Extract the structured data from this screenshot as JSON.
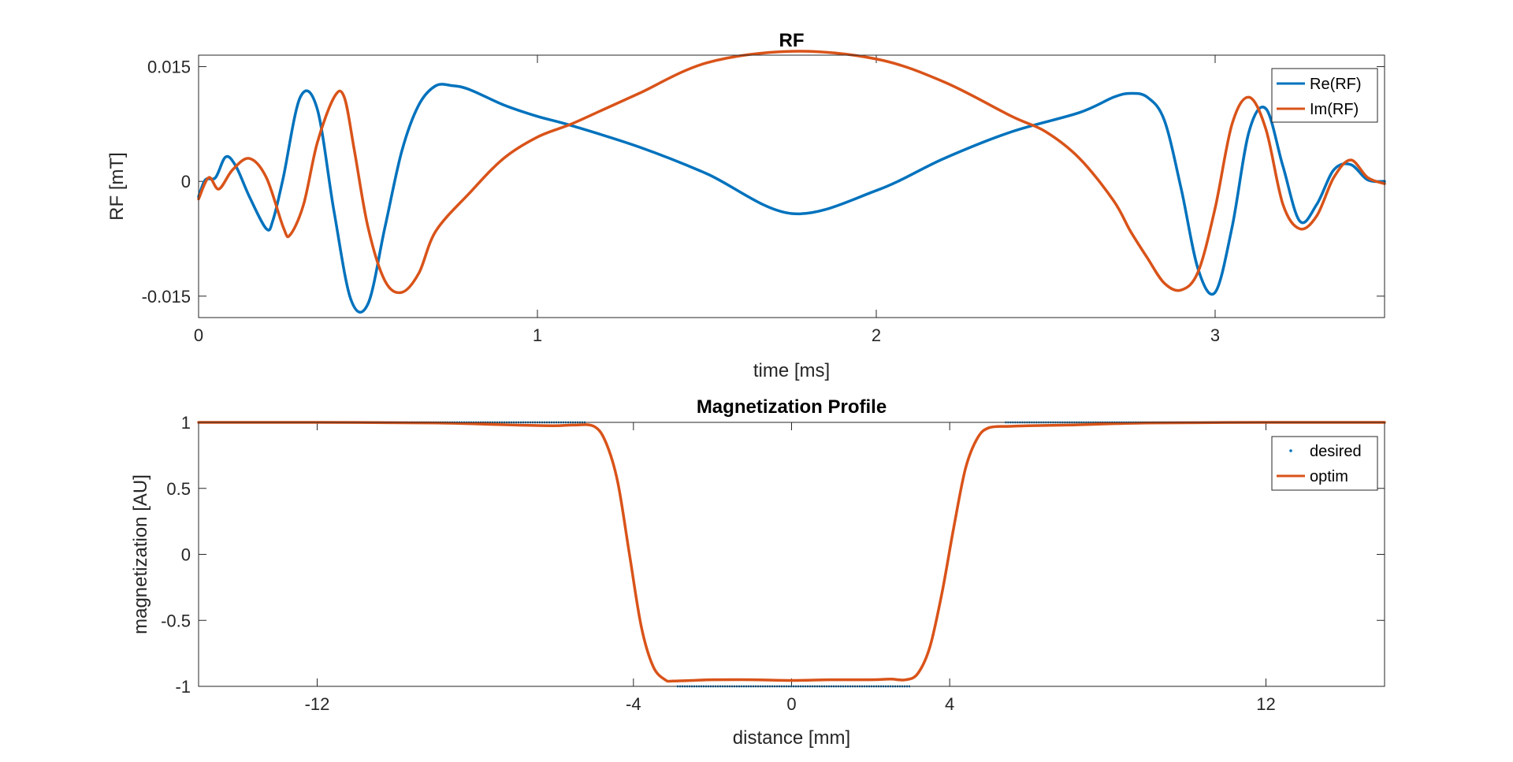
{
  "chart_data": [
    {
      "type": "line",
      "title": "RF",
      "xlabel": "time [ms]",
      "ylabel": "RF [mT]",
      "xlim": [
        0,
        3.5
      ],
      "ylim": [
        -0.0178,
        0.0165
      ],
      "xticks": [
        0,
        1,
        2,
        3
      ],
      "xtick_labels": [
        "0",
        "1",
        "2",
        "3"
      ],
      "yticks": [
        -0.015,
        0,
        0.015
      ],
      "ytick_labels": [
        "-0.015",
        "0",
        "0.015"
      ],
      "legend_position": "top-right",
      "series": [
        {
          "name": "Re(RF)",
          "color": "#0072BD",
          "x": [
            0,
            0.02,
            0.05,
            0.08,
            0.11,
            0.15,
            0.2,
            0.22,
            0.25,
            0.3,
            0.35,
            0.4,
            0.45,
            0.5,
            0.55,
            0.6,
            0.65,
            0.7,
            0.75,
            0.8,
            0.9,
            1.0,
            1.1,
            1.3,
            1.5,
            1.75,
            2.0,
            2.2,
            2.4,
            2.6,
            2.7,
            2.75,
            2.8,
            2.85,
            2.9,
            2.95,
            3.0,
            3.05,
            3.1,
            3.15,
            3.2,
            3.25,
            3.3,
            3.35,
            3.4,
            3.45,
            3.5
          ],
          "y": [
            -0.002,
            0.0002,
            0.0005,
            0.0032,
            0.002,
            -0.002,
            -0.0062,
            -0.005,
            0.0005,
            0.011,
            0.0095,
            -0.004,
            -0.0155,
            -0.016,
            -0.006,
            0.004,
            0.01,
            0.0125,
            0.0125,
            0.012,
            0.01,
            0.0085,
            0.0073,
            0.0045,
            0.001,
            -0.0042,
            -0.0012,
            0.003,
            0.0065,
            0.009,
            0.011,
            0.0115,
            0.011,
            0.008,
            -0.001,
            -0.0115,
            -0.0145,
            -0.006,
            0.0065,
            0.0095,
            0.002,
            -0.0052,
            -0.003,
            0.0015,
            0.0022,
            0.0002,
            0
          ]
        },
        {
          "name": "Im(RF)",
          "color": "#D95319",
          "x": [
            0,
            0.03,
            0.06,
            0.1,
            0.15,
            0.2,
            0.25,
            0.27,
            0.31,
            0.35,
            0.4,
            0.43,
            0.46,
            0.5,
            0.55,
            0.6,
            0.65,
            0.7,
            0.8,
            0.9,
            1.0,
            1.1,
            1.2,
            1.3,
            1.5,
            1.75,
            2.0,
            2.2,
            2.4,
            2.5,
            2.6,
            2.7,
            2.75,
            2.8,
            2.85,
            2.9,
            2.95,
            3.0,
            3.05,
            3.1,
            3.15,
            3.2,
            3.25,
            3.3,
            3.35,
            3.4,
            3.45,
            3.5
          ],
          "y": [
            -0.0023,
            0.0005,
            -0.001,
            0.0015,
            0.003,
            0.0005,
            -0.006,
            -0.007,
            -0.003,
            0.005,
            0.011,
            0.011,
            0.004,
            -0.006,
            -0.013,
            -0.0145,
            -0.012,
            -0.0065,
            -0.0015,
            0.003,
            0.0058,
            0.0075,
            0.0095,
            0.0115,
            0.0155,
            0.017,
            0.016,
            0.013,
            0.0085,
            0.0065,
            0.003,
            -0.0025,
            -0.0065,
            -0.01,
            -0.0133,
            -0.0142,
            -0.0118,
            -0.0035,
            0.0075,
            0.011,
            0.0068,
            -0.003,
            -0.0062,
            -0.0045,
            0.0005,
            0.0028,
            0.0005,
            -0.0003
          ]
        }
      ]
    },
    {
      "type": "line",
      "title": "Magnetization Profile",
      "xlabel": "distance [mm]",
      "ylabel": "magnetization [AU]",
      "xlim": [
        -15,
        15
      ],
      "ylim": [
        -1,
        1
      ],
      "xticks": [
        -12,
        -4,
        0,
        4,
        12
      ],
      "xtick_labels": [
        "-12",
        "-4",
        "0",
        "4",
        "12"
      ],
      "yticks": [
        -1,
        -0.5,
        0,
        0.5,
        1
      ],
      "ytick_labels": [
        "-1",
        "-0.5",
        "0",
        "0.5",
        "1"
      ],
      "legend_position": "top-right",
      "series": [
        {
          "name": "desired",
          "color": "#0072BD",
          "style": "points",
          "segments": [
            {
              "x": [
                -15,
                -5.2
              ],
              "y": [
                1,
                1
              ]
            },
            {
              "x": [
                -2.9,
                3.0
              ],
              "y": [
                -1,
                -1
              ]
            },
            {
              "x": [
                5.4,
                15
              ],
              "y": [
                1,
                1
              ]
            }
          ]
        },
        {
          "name": "optim",
          "color": "#D95319",
          "x": [
            -15,
            -12,
            -9,
            -7,
            -6,
            -5.5,
            -5,
            -4.7,
            -4.4,
            -4.1,
            -3.8,
            -3.5,
            -3.2,
            -3.0,
            -2.5,
            -2,
            -1,
            0,
            1,
            2,
            2.5,
            2.9,
            3.2,
            3.5,
            3.8,
            4.1,
            4.4,
            4.7,
            5.0,
            5.5,
            6,
            7,
            9,
            12,
            15
          ],
          "y": [
            1,
            1,
            0.995,
            0.98,
            0.975,
            0.98,
            0.97,
            0.85,
            0.55,
            0.0,
            -0.55,
            -0.85,
            -0.95,
            -0.96,
            -0.955,
            -0.95,
            -0.95,
            -0.955,
            -0.95,
            -0.95,
            -0.945,
            -0.95,
            -0.9,
            -0.7,
            -0.3,
            0.2,
            0.65,
            0.88,
            0.96,
            0.97,
            0.975,
            0.98,
            0.995,
            1,
            1
          ]
        }
      ]
    }
  ]
}
